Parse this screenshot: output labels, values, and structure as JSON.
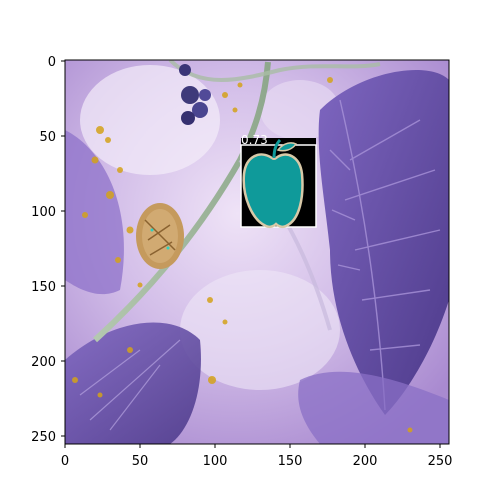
{
  "detection": {
    "score": "0.73",
    "box_color": "#ffffff",
    "mask_color": "#0f9a9a",
    "icon": "apple-icon"
  },
  "axes": {
    "x_ticks": [
      "0",
      "50",
      "100",
      "150",
      "200",
      "250"
    ],
    "y_ticks": [
      "0",
      "50",
      "100",
      "150",
      "200",
      "250"
    ]
  },
  "colors": {
    "background_purple": "#b99bd8",
    "leaf_purple": "#6a55a8",
    "speckle_gold": "#d4a21a"
  }
}
